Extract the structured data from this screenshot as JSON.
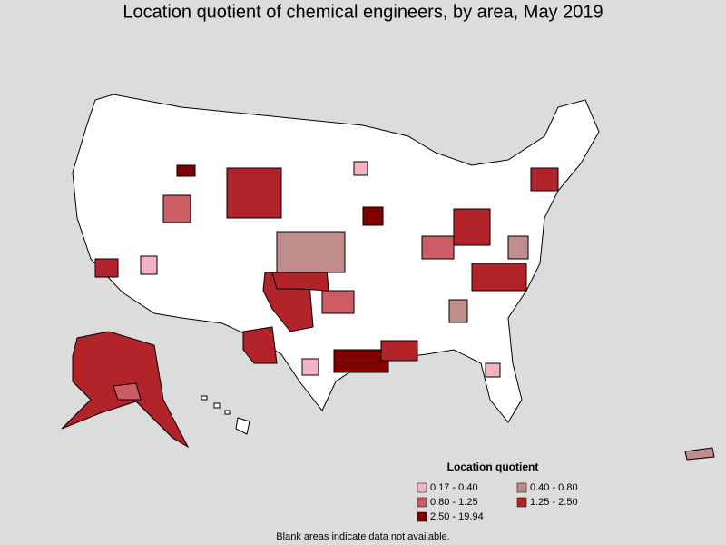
{
  "title": "Location quotient of chemical engineers, by area, May 2019",
  "legend": {
    "title": "Location quotient",
    "items": [
      {
        "label": "0.17 - 0.40",
        "color": "#f4b3c0"
      },
      {
        "label": "0.40 - 0.80",
        "color": "#c08c8c"
      },
      {
        "label": "0.80 - 1.25",
        "color": "#cd5c64"
      },
      {
        "label": "1.25 - 2.50",
        "color": "#b2232a"
      },
      {
        "label": "2.50 - 19.94",
        "color": "#800000"
      }
    ]
  },
  "footnote": "Blank areas indicate data not available."
}
